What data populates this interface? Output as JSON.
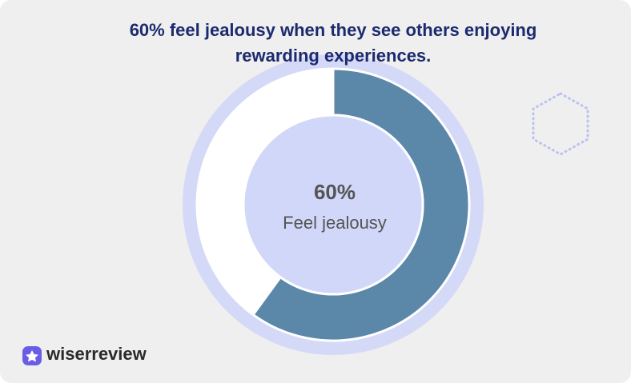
{
  "chart_data": {
    "type": "donut",
    "title": "60% feel jealousy when they see others enjoying rewarding experiences.",
    "categories": [
      "Feel jealousy",
      null
    ],
    "values": [
      60,
      40
    ],
    "value_labels": [
      "60%",
      null
    ],
    "colors": [
      "#5b87a8",
      "#ffffff"
    ]
  },
  "brand": "wiserreview"
}
